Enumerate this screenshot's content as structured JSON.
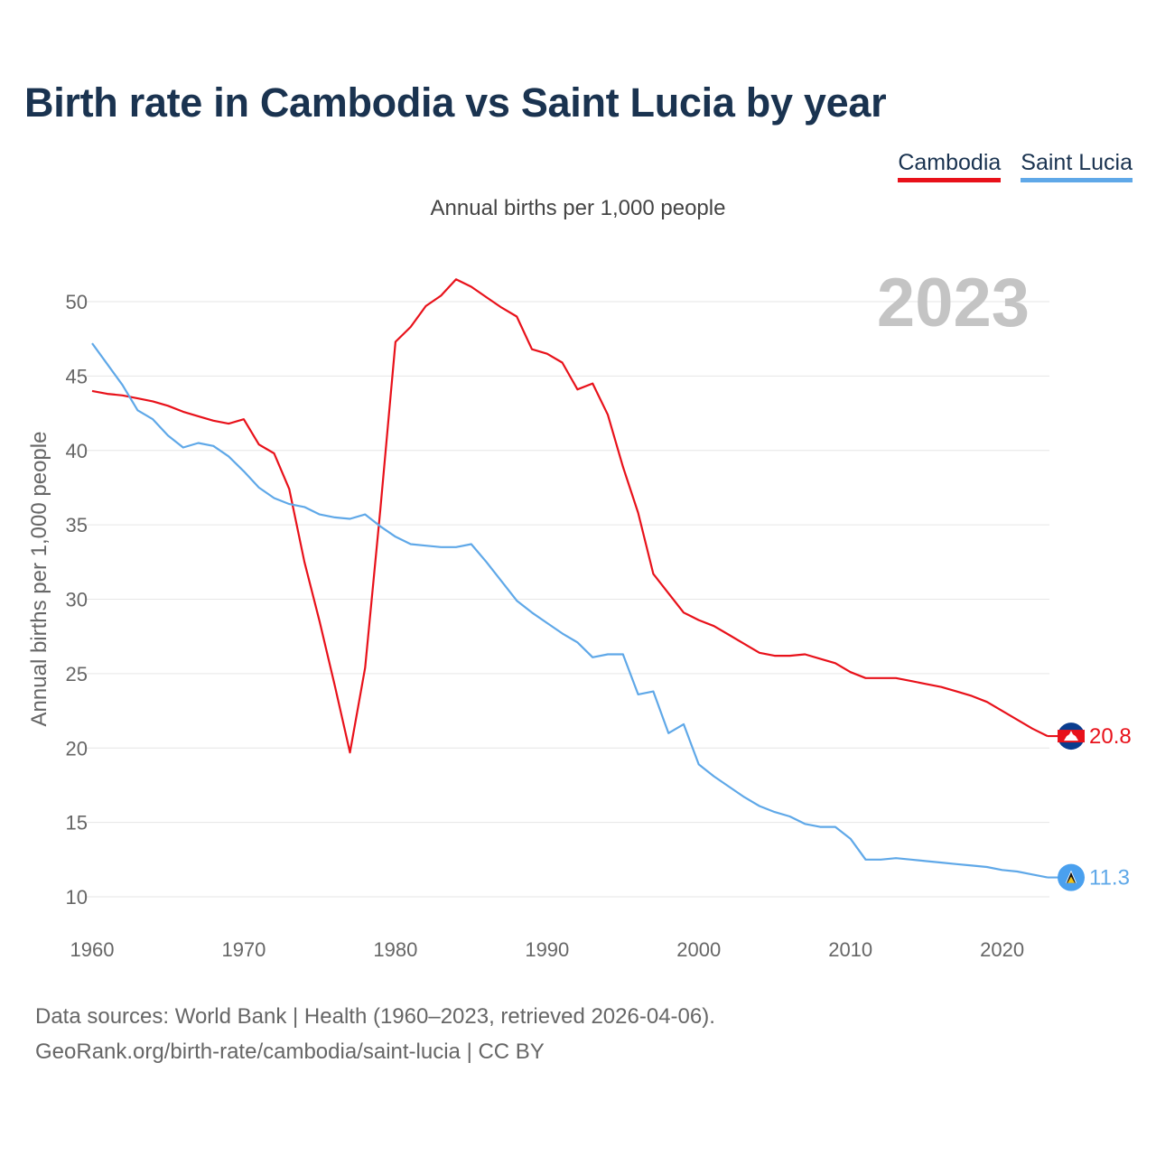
{
  "title": "Birth rate in Cambodia vs Saint Lucia by year",
  "subtitle": "Annual births per 1,000 people",
  "legend": [
    {
      "label": "Cambodia",
      "color": "#e8111a"
    },
    {
      "label": "Saint Lucia",
      "color": "#5fa8e8"
    }
  ],
  "year_display": "2023",
  "footer": {
    "line1": "Data sources: World Bank | Health (1960–2023, retrieved 2026-04-06).",
    "line2": "GeoRank.org/birth-rate/cambodia/saint-lucia | CC BY"
  },
  "chart_data": {
    "type": "line",
    "title": "Birth rate in Cambodia vs Saint Lucia by year",
    "xlabel": "",
    "ylabel": "Annual births per 1,000 people",
    "xlim": [
      1960,
      2023
    ],
    "ylim": [
      10,
      52
    ],
    "grid": true,
    "x_ticks": [
      1960,
      1970,
      1980,
      1990,
      2000,
      2010,
      2020
    ],
    "y_ticks": [
      10,
      15,
      20,
      25,
      30,
      35,
      40,
      45,
      50
    ],
    "x": [
      1960,
      1961,
      1962,
      1963,
      1964,
      1965,
      1966,
      1967,
      1968,
      1969,
      1970,
      1971,
      1972,
      1973,
      1974,
      1975,
      1976,
      1977,
      1978,
      1979,
      1980,
      1981,
      1982,
      1983,
      1984,
      1985,
      1986,
      1987,
      1988,
      1989,
      1990,
      1991,
      1992,
      1993,
      1994,
      1995,
      1996,
      1997,
      1998,
      1999,
      2000,
      2001,
      2002,
      2003,
      2004,
      2005,
      2006,
      2007,
      2008,
      2009,
      2010,
      2011,
      2012,
      2013,
      2014,
      2015,
      2016,
      2017,
      2018,
      2019,
      2020,
      2021,
      2022,
      2023
    ],
    "series": [
      {
        "name": "Cambodia",
        "color": "#e8111a",
        "end_label": "20.8",
        "values": [
          44.0,
          43.8,
          43.7,
          43.5,
          43.3,
          43.0,
          42.6,
          42.3,
          42.0,
          41.8,
          42.1,
          40.4,
          39.8,
          37.4,
          32.5,
          28.5,
          24.2,
          19.7,
          25.4,
          36.0,
          47.3,
          48.3,
          49.7,
          50.4,
          51.5,
          51.0,
          50.3,
          49.6,
          49.0,
          46.8,
          46.5,
          45.9,
          44.1,
          44.5,
          42.4,
          38.9,
          35.8,
          31.7,
          30.4,
          29.1,
          28.6,
          28.2,
          27.6,
          27.0,
          26.4,
          26.2,
          26.2,
          26.3,
          26.0,
          25.7,
          25.1,
          24.7,
          24.7,
          24.7,
          24.5,
          24.3,
          24.1,
          23.8,
          23.5,
          23.1,
          22.5,
          21.9,
          21.3,
          20.8
        ]
      },
      {
        "name": "Saint Lucia",
        "color": "#5fa8e8",
        "end_label": "11.3",
        "values": [
          47.2,
          45.8,
          44.4,
          42.7,
          42.1,
          41.0,
          40.2,
          40.5,
          40.3,
          39.6,
          38.6,
          37.5,
          36.8,
          36.4,
          36.2,
          35.7,
          35.5,
          35.4,
          35.7,
          34.9,
          34.2,
          33.7,
          33.6,
          33.5,
          33.5,
          33.7,
          32.5,
          31.2,
          29.9,
          29.1,
          28.4,
          27.7,
          27.1,
          26.1,
          26.3,
          26.3,
          23.6,
          23.8,
          21.0,
          21.6,
          18.9,
          18.1,
          17.4,
          16.7,
          16.1,
          15.7,
          15.4,
          14.9,
          14.7,
          14.7,
          13.9,
          12.5,
          12.5,
          12.6,
          12.5,
          12.4,
          12.3,
          12.2,
          12.1,
          12.0,
          11.8,
          11.7,
          11.5,
          11.3
        ]
      }
    ]
  }
}
